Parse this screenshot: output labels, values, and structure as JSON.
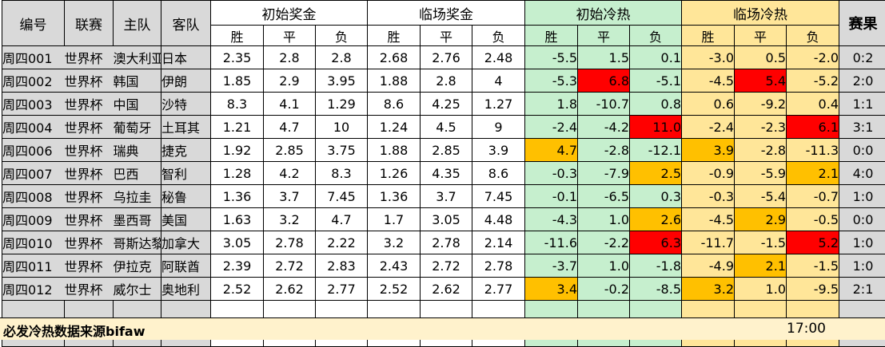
{
  "headers": {
    "id": "编号",
    "league": "联赛",
    "home": "主队",
    "away": "客队",
    "initial_odds": "初始奖金",
    "final_odds": "临场奖金",
    "initial_hot": "初始冷热",
    "final_hot": "临场冷热",
    "result": "赛果",
    "win": "胜",
    "draw": "平",
    "lose": "负"
  },
  "colors": {
    "odds_bg": "#ffffff",
    "initial_hot_bg": "#c6efce",
    "final_hot_bg": "#ffe699",
    "result_bg": "#d9d9d9",
    "hot_red": "#ff0000",
    "hot_orange": "#ffc000",
    "footer_bg": "#fff2cc"
  },
  "rows": [
    {
      "id": "周四001",
      "league": "世界杯",
      "home": "澳大利亚",
      "away": "日本",
      "io": [
        "2.35",
        "2.8",
        "2.8"
      ],
      "fo": [
        "2.68",
        "2.76",
        "2.48"
      ],
      "ih": [
        "-5.5",
        "1.5",
        "0.1"
      ],
      "ihc": [
        "",
        "",
        ""
      ],
      "fh": [
        "-3.0",
        "0.5",
        "-2.0"
      ],
      "fhc": [
        "",
        "",
        ""
      ],
      "result": "0:2"
    },
    {
      "id": "周四002",
      "league": "世界杯",
      "home": "韩国",
      "away": "伊朗",
      "io": [
        "1.85",
        "2.9",
        "3.95"
      ],
      "fo": [
        "1.88",
        "2.8",
        "4"
      ],
      "ih": [
        "-5.3",
        "6.8",
        "-5.1"
      ],
      "ihc": [
        "",
        "red",
        ""
      ],
      "fh": [
        "-4.5",
        "5.4",
        "-5.2"
      ],
      "fhc": [
        "",
        "red",
        ""
      ],
      "result": "2:0"
    },
    {
      "id": "周四003",
      "league": "世界杯",
      "home": "中国",
      "away": "沙特",
      "io": [
        "8.3",
        "4.1",
        "1.29"
      ],
      "fo": [
        "8.6",
        "4.25",
        "1.27"
      ],
      "ih": [
        "1.8",
        "-10.7",
        "0.8"
      ],
      "ihc": [
        "",
        "",
        ""
      ],
      "fh": [
        "0.6",
        "-9.2",
        "0.4"
      ],
      "fhc": [
        "",
        "",
        ""
      ],
      "result": "1:1"
    },
    {
      "id": "周四004",
      "league": "世界杯",
      "home": "葡萄牙",
      "away": "土耳其",
      "io": [
        "1.21",
        "4.7",
        "10"
      ],
      "fo": [
        "1.24",
        "4.5",
        "9"
      ],
      "ih": [
        "-2.4",
        "-4.2",
        "11.0"
      ],
      "ihc": [
        "",
        "",
        "red"
      ],
      "fh": [
        "-2.4",
        "-2.3",
        "6.1"
      ],
      "fhc": [
        "",
        "",
        "red"
      ],
      "result": "3:1"
    },
    {
      "id": "周四006",
      "league": "世界杯",
      "home": "瑞典",
      "away": "捷克",
      "io": [
        "1.92",
        "2.85",
        "3.75"
      ],
      "fo": [
        "1.88",
        "2.85",
        "3.9"
      ],
      "ih": [
        "4.7",
        "-2.8",
        "-12.1"
      ],
      "ihc": [
        "org",
        "",
        ""
      ],
      "fh": [
        "3.9",
        "-2.8",
        "-11.3"
      ],
      "fhc": [
        "org",
        "",
        ""
      ],
      "result": "0:0"
    },
    {
      "id": "周四007",
      "league": "世界杯",
      "home": "巴西",
      "away": "智利",
      "io": [
        "1.28",
        "4.2",
        "8.3"
      ],
      "fo": [
        "1.26",
        "4.35",
        "8.6"
      ],
      "ih": [
        "-0.3",
        "-7.9",
        "2.5"
      ],
      "ihc": [
        "",
        "",
        "org"
      ],
      "fh": [
        "-0.9",
        "-5.9",
        "2.1"
      ],
      "fhc": [
        "",
        "",
        "org"
      ],
      "result": "4:0"
    },
    {
      "id": "周四008",
      "league": "世界杯",
      "home": "乌拉圭",
      "away": "秘鲁",
      "io": [
        "1.36",
        "3.7",
        "7.45"
      ],
      "fo": [
        "1.36",
        "3.7",
        "7.45"
      ],
      "ih": [
        "-0.1",
        "-6.5",
        "0.3"
      ],
      "ihc": [
        "",
        "",
        ""
      ],
      "fh": [
        "-0.3",
        "-5.4",
        "-0.7"
      ],
      "fhc": [
        "",
        "",
        ""
      ],
      "result": "1:0"
    },
    {
      "id": "周四009",
      "league": "世界杯",
      "home": "墨西哥",
      "away": "美国",
      "io": [
        "1.63",
        "3.2",
        "4.7"
      ],
      "fo": [
        "1.7",
        "3.05",
        "4.48"
      ],
      "ih": [
        "-4.3",
        "1.0",
        "2.6"
      ],
      "ihc": [
        "",
        "",
        "org"
      ],
      "fh": [
        "-4.5",
        "2.9",
        "-0.5"
      ],
      "fhc": [
        "",
        "org",
        ""
      ],
      "result": "0:0"
    },
    {
      "id": "周四010",
      "league": "世界杯",
      "home": "哥斯达黎加",
      "away": "加拿大",
      "io": [
        "3.05",
        "2.78",
        "2.22"
      ],
      "fo": [
        "3.2",
        "2.78",
        "2.14"
      ],
      "ih": [
        "-11.6",
        "-2.2",
        "6.3"
      ],
      "ihc": [
        "",
        "",
        "red"
      ],
      "fh": [
        "-11.7",
        "-1.5",
        "5.2"
      ],
      "fhc": [
        "",
        "",
        "red"
      ],
      "result": "1:0"
    },
    {
      "id": "周四011",
      "league": "世界杯",
      "home": "伊拉克",
      "away": "阿联酋",
      "io": [
        "2.39",
        "2.72",
        "2.83"
      ],
      "fo": [
        "2.43",
        "2.72",
        "2.78"
      ],
      "ih": [
        "-3.7",
        "1.0",
        "-1.8"
      ],
      "ihc": [
        "",
        "",
        ""
      ],
      "fh": [
        "-4.9",
        "2.1",
        "-1.5"
      ],
      "fhc": [
        "",
        "org",
        ""
      ],
      "result": "1:0"
    },
    {
      "id": "周四012",
      "league": "世界杯",
      "home": "威尔士",
      "away": "奥地利",
      "io": [
        "2.52",
        "2.62",
        "2.77"
      ],
      "fo": [
        "2.52",
        "2.62",
        "2.77"
      ],
      "ih": [
        "3.4",
        "-0.2",
        "-8.5"
      ],
      "ihc": [
        "org",
        "",
        ""
      ],
      "fh": [
        "3.2",
        "1.0",
        "-9.5"
      ],
      "fhc": [
        "org",
        "",
        ""
      ],
      "result": "2:1"
    }
  ],
  "footer": {
    "note": "必发冷热数据来源bifaw",
    "time": "17:00"
  }
}
